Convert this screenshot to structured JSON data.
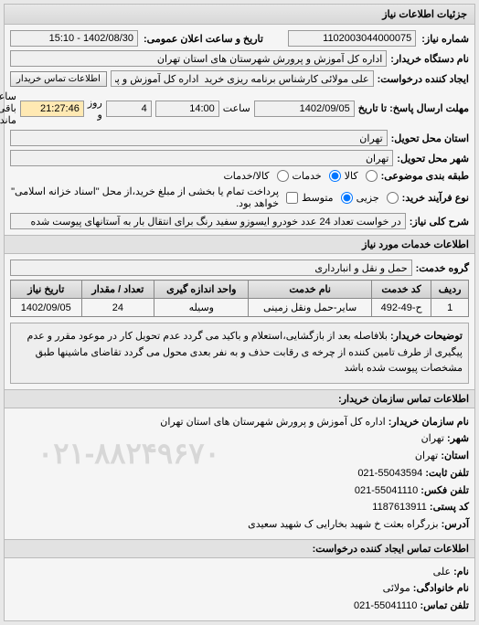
{
  "panel_title": "جزئیات اطلاعات نیاز",
  "top": {
    "need_no_label": "شماره نیاز:",
    "need_no": "1102003044000075",
    "announce_label": "تاریخ و ساعت اعلان عمومی:",
    "announce_value": "1402/08/30 - 15:10",
    "buyer_org_label": "نام دستگاه خریدار:",
    "buyer_org": "اداره کل آموزش و پرورش شهرستان های استان تهران",
    "requester_label": "ایجاد کننده درخواست:",
    "requester": "علی مولائی کارشناس برنامه ریزی خرید  اداره کل آموزش و پرورش شهرستان ها",
    "contact_btn": "اطلاعات تماس خریدار",
    "deadline_label": "مهلت ارسال پاسخ: تا تاریخ",
    "deadline_date": "1402/09/05",
    "time_label": "ساعت",
    "deadline_time": "14:00",
    "day_word": "روز و",
    "days": "4",
    "remain_time": "21:27:46",
    "remain_suffix": "ساعت باقی مانده",
    "delivery_province_label": "استان محل تحویل:",
    "delivery_province": "تهران",
    "delivery_city_label": "شهر محل تحویل:",
    "delivery_city": "تهران",
    "subject_type_label": "طبقه بندی موضوعی:",
    "subject_goods": "کالا",
    "subject_services": "خدمات",
    "subject_both": "کالا/خدمات",
    "order_type_label": "نوع فرآیند خرید:",
    "order_small": "جزیی",
    "order_medium": "متوسط",
    "order_note": "پرداخت تمام یا بخشی از مبلغ خرید،از محل \"اسناد خزانه اسلامی\" خواهد بود.",
    "need_desc_label": "شرح کلی نیاز:",
    "need_desc": "در خواست تعداد 24 عدد خودرو ایسوزو سفید رنگ برای انتقال بار به آستانهای پیوست شده"
  },
  "services": {
    "header": "اطلاعات خدمات مورد نیاز",
    "group_label": "گروه خدمت:",
    "group_value": "حمل و نقل و انبارداری",
    "columns": [
      "ردیف",
      "کد خدمت",
      "نام خدمت",
      "واحد اندازه گیری",
      "تعداد / مقدار",
      "تاریخ نیاز"
    ],
    "rows": [
      [
        "1",
        "ح-49-492",
        "سایر-حمل ونقل زمینی",
        "وسیله",
        "24",
        "1402/09/05"
      ]
    ],
    "explain_label": "توضیحات خریدار:",
    "explain_text": "بلافاصله بعد از بازگشایی،استعلام و باکید می گردد عدم تحویل کار در موعود مقرر و عدم پیگیری از طرف تامین کننده از چرخه ی رقابت حذف و به نفر بعدی محول می گردد تقاضای ماشینها طبق مشخصات پیوست شده باشد"
  },
  "contact1": {
    "header": "اطلاعات تماس سازمان خریدار:",
    "org_name_label": "نام سازمان  خریدار:",
    "org_name": "اداره کل آموزش و پرورش شهرستان های استان تهران",
    "province_label": "شهر:",
    "province": "تهران",
    "state_label": "استان:",
    "state": "تهران",
    "phone_label": "تلفن ثابت:",
    "phone": "55043594-021",
    "fax_label": "تلفن فکس:",
    "fax": "55041110-021",
    "postal_label": "کد پستی:",
    "postal": "1187613911",
    "address_label": "آدرس:",
    "address": "بزرگراه بعثت خ شهید بخارایی ک شهید سعیدی",
    "watermark": "۰۲۱-۸۸۲۴۹۶۷۰"
  },
  "contact2": {
    "header": "اطلاعات تماس ایجاد کننده درخواست:",
    "name_label": "نام:",
    "name": "علی",
    "family_label": "نام خانوادگی:",
    "family": "مولائی",
    "phone_label": "تلفن تماس:",
    "phone": "55041110-021"
  }
}
